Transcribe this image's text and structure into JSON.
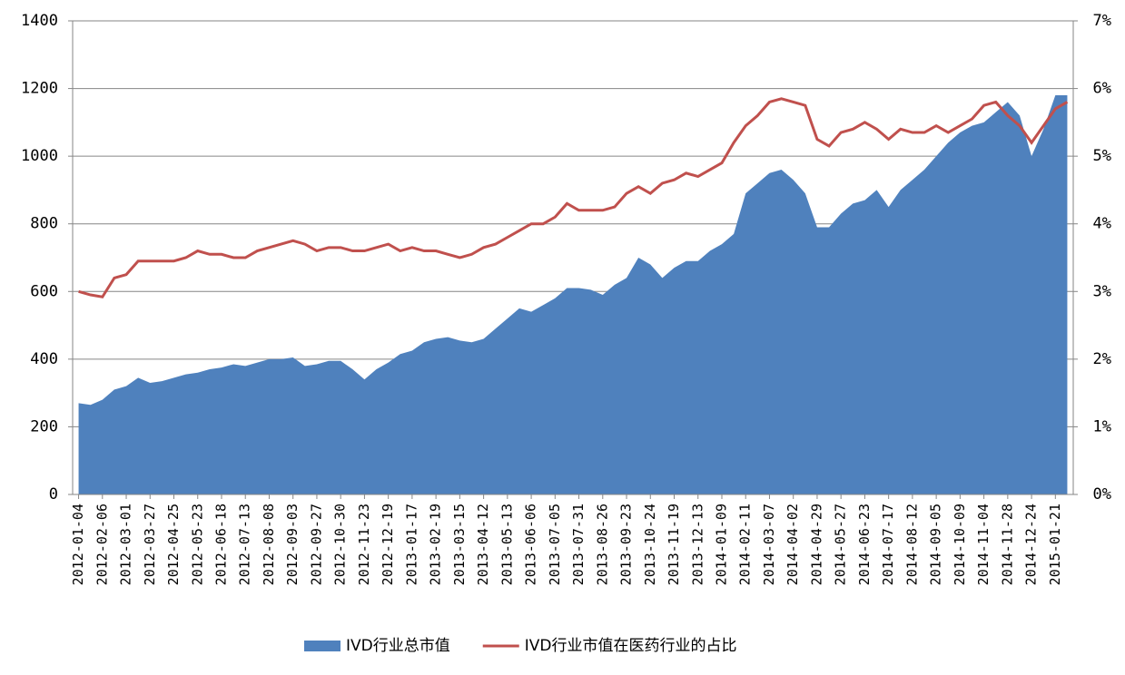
{
  "chart_data": {
    "type": "area-line",
    "categories": [
      "2012-01-04",
      null,
      "2012-02-06",
      null,
      "2012-03-01",
      null,
      "2012-03-27",
      null,
      "2012-04-25",
      null,
      "2012-05-23",
      null,
      "2012-06-18",
      null,
      "2012-07-13",
      null,
      "2012-08-08",
      null,
      "2012-09-03",
      null,
      "2012-09-27",
      null,
      "2012-10-30",
      null,
      "2012-11-23",
      null,
      "2012-12-19",
      null,
      "2013-01-17",
      null,
      "2013-02-19",
      null,
      "2013-03-15",
      null,
      "2013-04-12",
      null,
      "2013-05-13",
      null,
      "2013-06-06",
      null,
      "2013-07-05",
      null,
      "2013-07-31",
      null,
      "2013-08-26",
      null,
      "2013-09-23",
      null,
      "2013-10-24",
      null,
      "2013-11-19",
      null,
      "2013-12-13",
      null,
      "2014-01-09",
      null,
      "2014-02-11",
      null,
      "2014-03-07",
      null,
      "2014-04-02",
      null,
      "2014-04-29",
      null,
      "2014-05-27",
      null,
      "2014-06-23",
      null,
      "2014-07-17",
      null,
      "2014-08-12",
      null,
      "2014-09-05",
      null,
      "2014-10-09",
      null,
      "2014-11-04",
      null,
      "2014-11-28",
      null,
      "2014-12-24",
      null,
      "2015-01-21",
      null
    ],
    "series": [
      {
        "name": "IVD行业总市值",
        "color": "#4f81bd",
        "kind": "area",
        "values": [
          270,
          265,
          280,
          310,
          320,
          345,
          330,
          335,
          345,
          355,
          360,
          370,
          375,
          385,
          380,
          390,
          400,
          400,
          405,
          380,
          385,
          395,
          395,
          370,
          340,
          370,
          390,
          415,
          425,
          450,
          460,
          465,
          455,
          450,
          460,
          490,
          520,
          550,
          540,
          560,
          580,
          610,
          610,
          605,
          590,
          620,
          640,
          700,
          680,
          640,
          670,
          690,
          690,
          720,
          740,
          770,
          890,
          920,
          950,
          960,
          930,
          890,
          790,
          790,
          830,
          860,
          870,
          900,
          850,
          900,
          930,
          960,
          1000,
          1040,
          1070,
          1090,
          1100,
          1130,
          1160,
          1120,
          1000,
          1080,
          1180,
          1180
        ]
      },
      {
        "name": "IVD行业市值在医药行业的占比",
        "color": "#c0504d",
        "kind": "line",
        "axis": "y2",
        "values": [
          3.0,
          2.95,
          2.92,
          3.2,
          3.25,
          3.45,
          3.45,
          3.45,
          3.45,
          3.5,
          3.6,
          3.55,
          3.55,
          3.5,
          3.5,
          3.6,
          3.65,
          3.7,
          3.75,
          3.7,
          3.6,
          3.65,
          3.65,
          3.6,
          3.6,
          3.65,
          3.7,
          3.6,
          3.65,
          3.6,
          3.6,
          3.55,
          3.5,
          3.55,
          3.65,
          3.7,
          3.8,
          3.9,
          4.0,
          4.0,
          4.1,
          4.3,
          4.2,
          4.2,
          4.2,
          4.25,
          4.45,
          4.55,
          4.45,
          4.6,
          4.65,
          4.75,
          4.7,
          4.8,
          4.9,
          5.2,
          5.45,
          5.6,
          5.8,
          5.85,
          5.8,
          5.75,
          5.25,
          5.15,
          5.35,
          5.4,
          5.5,
          5.4,
          5.25,
          5.4,
          5.35,
          5.35,
          5.45,
          5.35,
          5.45,
          5.55,
          5.75,
          5.8,
          5.6,
          5.45,
          5.2,
          5.45,
          5.7,
          5.8
        ]
      }
    ],
    "ylim": [
      0,
      1400
    ],
    "yticks": [
      0,
      200,
      400,
      600,
      800,
      1000,
      1200,
      1400
    ],
    "y2lim": [
      0,
      7
    ],
    "y2ticks": [
      {
        "value": 0,
        "label": "0%"
      },
      {
        "value": 1,
        "label": "1%"
      },
      {
        "value": 2,
        "label": "2%"
      },
      {
        "value": 3,
        "label": "3%"
      },
      {
        "value": 4,
        "label": "4%"
      },
      {
        "value": 5,
        "label": "5%"
      },
      {
        "value": 6,
        "label": "6%"
      },
      {
        "value": 7,
        "label": "7%"
      }
    ],
    "grid": true,
    "legend": "bottom"
  }
}
